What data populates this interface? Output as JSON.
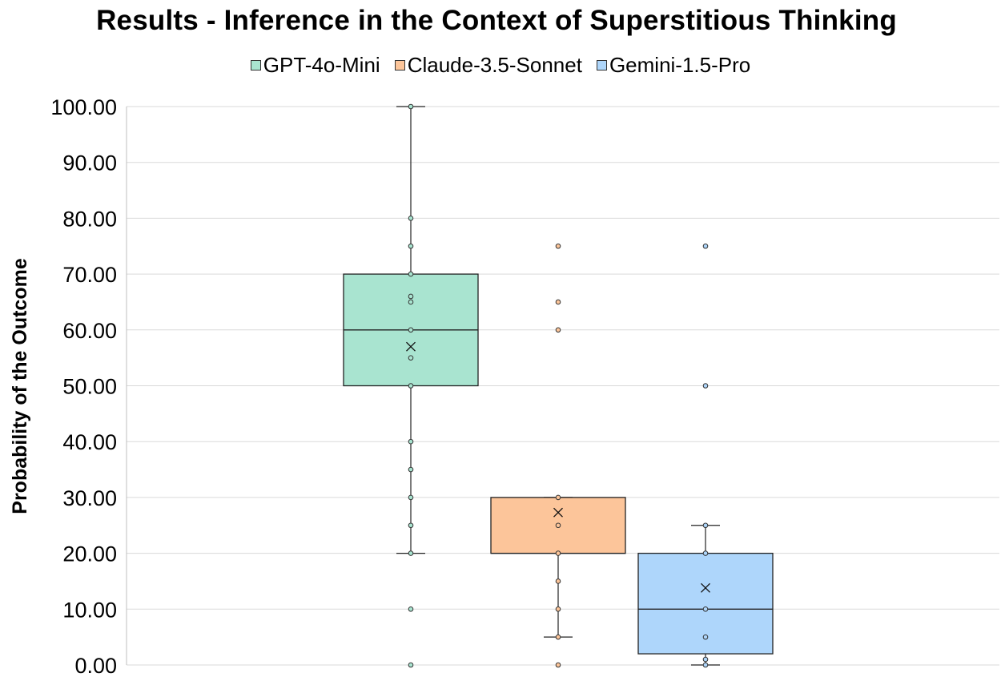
{
  "colors": {
    "gpt": "#a9e4d0",
    "claude": "#fcc59a",
    "gemini": "#aed6fb",
    "grid": "#d9d9d9",
    "outline": "#222222"
  },
  "chart_data": {
    "type": "box",
    "title": "Results - Inference in the Context of Superstitious Thinking",
    "ylabel": "Probability of the Outcome",
    "xlabel": "",
    "ylim": [
      0,
      100
    ],
    "yticks": [
      "0.00",
      "10.00",
      "20.00",
      "30.00",
      "40.00",
      "50.00",
      "60.00",
      "70.00",
      "80.00",
      "90.00",
      "100.00"
    ],
    "grid": true,
    "legend_position": "top-center",
    "series": [
      {
        "name": "GPT-4o-Mini",
        "color": "#a9e4d0",
        "q1": 50,
        "median": 60,
        "q3": 70,
        "whisker_low": 20,
        "whisker_high": 100,
        "mean": 57,
        "points": [
          100,
          80,
          75,
          70,
          66,
          65,
          60,
          55,
          50,
          40,
          35,
          30,
          25,
          20,
          10,
          0
        ]
      },
      {
        "name": "Claude-3.5-Sonnet",
        "color": "#fcc59a",
        "q1": 20,
        "median": 20,
        "q3": 30,
        "whisker_low": 5,
        "whisker_high": 30,
        "mean": 27.3,
        "points": [
          75,
          65,
          60,
          30,
          25,
          20,
          15,
          10,
          5,
          0
        ]
      },
      {
        "name": "Gemini-1.5-Pro",
        "color": "#aed6fb",
        "q1": 2,
        "median": 10,
        "q3": 20,
        "whisker_low": 0,
        "whisker_high": 25,
        "mean": 13.8,
        "points": [
          75,
          50,
          25,
          20,
          10,
          5,
          1,
          0
        ]
      }
    ]
  }
}
